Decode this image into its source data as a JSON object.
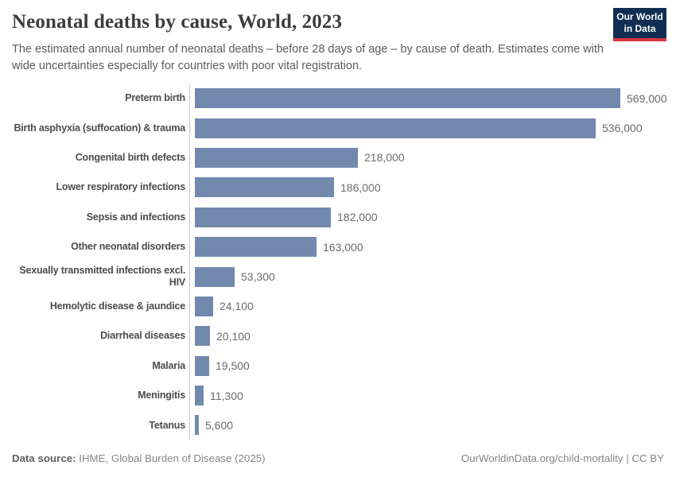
{
  "header": {
    "title": "Neonatal deaths by cause, World, 2023",
    "subtitle": "The estimated annual number of neonatal deaths – before 28 days of age – by cause of death. Estimates come with wide uncertainties especially for countries with poor vital registration.",
    "logo_line1": "Our World",
    "logo_line2": "in Data"
  },
  "footer": {
    "source_label": "Data source:",
    "source_text": " IHME, Global Burden of Disease (2025)",
    "url": "OurWorldinData.org/child-mortality",
    "separator": " | ",
    "license": "CC BY"
  },
  "colors": {
    "bar": "#7289ad",
    "axis": "#c3cad1",
    "logo_bg": "#0f2e52",
    "logo_stripe": "#d8353f"
  },
  "chart_data": {
    "type": "bar",
    "orientation": "horizontal",
    "title": "Neonatal deaths by cause, World, 2023",
    "xlabel": "",
    "ylabel": "",
    "xlim": [
      0,
      569000
    ],
    "grid": false,
    "legend": false,
    "categories": [
      "Preterm birth",
      "Birth asphyxia (suffocation) & trauma",
      "Congenital birth defects",
      "Lower respiratory infections",
      "Sepsis and infections",
      "Other neonatal disorders",
      "Sexually transmitted infections excl. HIV",
      "Hemolytic disease & jaundice",
      "Diarrheal diseases",
      "Malaria",
      "Meningitis",
      "Tetanus"
    ],
    "values": [
      569000,
      536000,
      218000,
      186000,
      182000,
      163000,
      53300,
      24100,
      20100,
      19500,
      11300,
      5600
    ],
    "value_labels": [
      "569,000",
      "536,000",
      "218,000",
      "186,000",
      "182,000",
      "163,000",
      "53,300",
      "24,100",
      "20,100",
      "19,500",
      "11,300",
      "5,600"
    ]
  }
}
